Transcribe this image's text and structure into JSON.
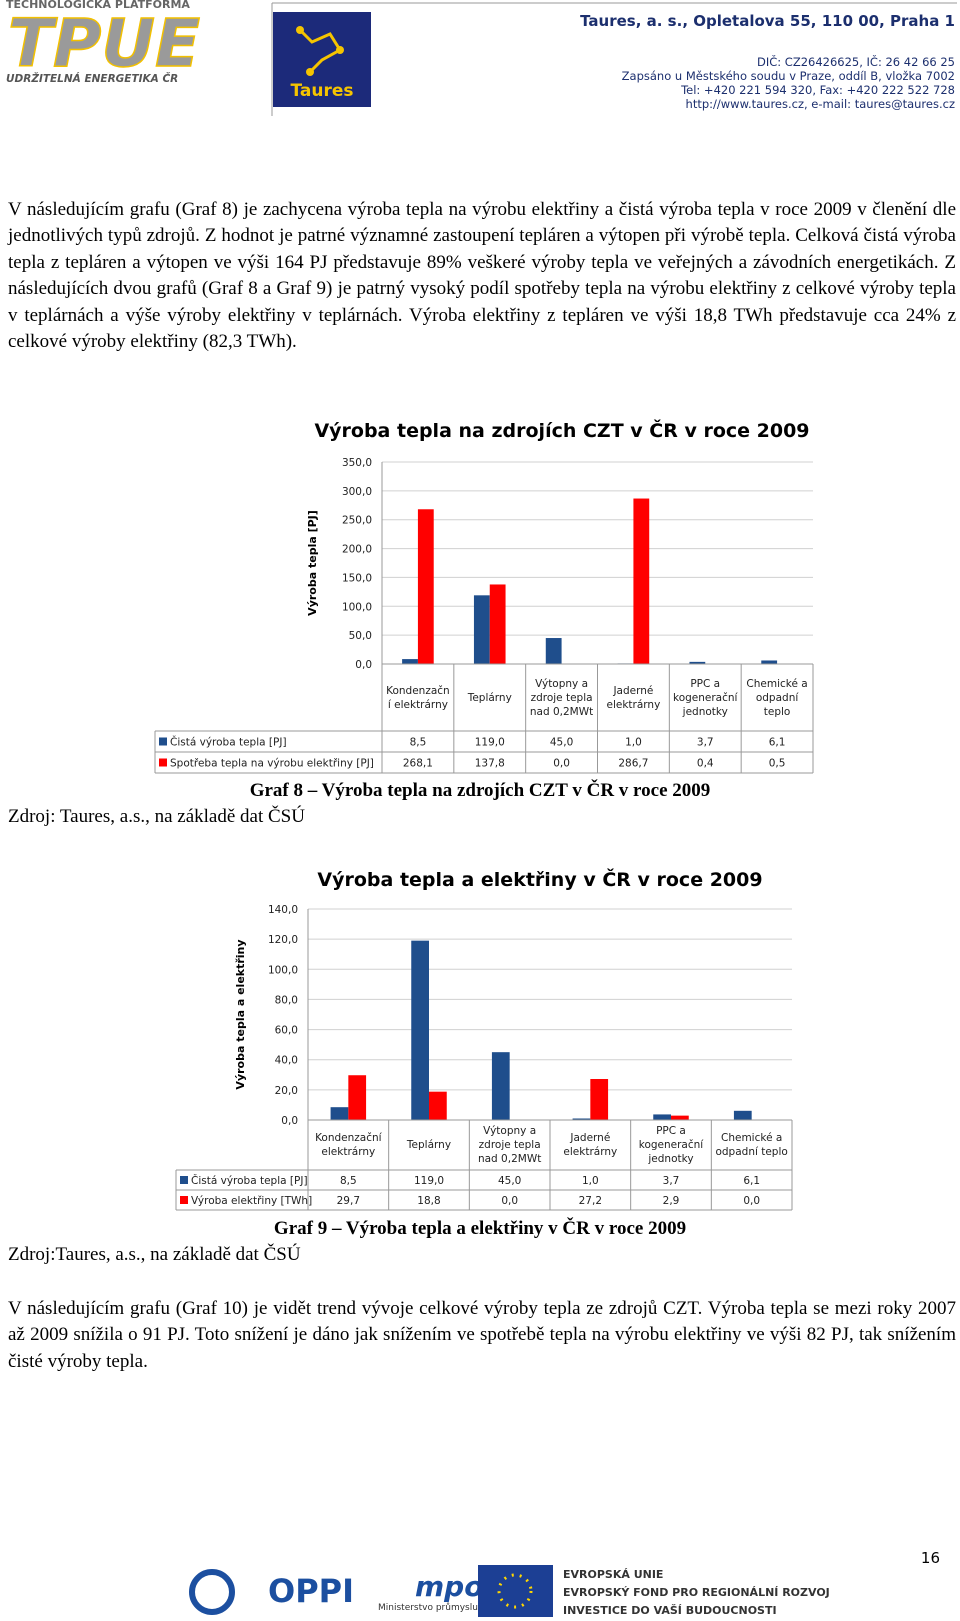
{
  "header": {
    "tpue_top": "TECHNOLOGICKÁ PLATFORMA",
    "tpue_logo": "TPUE",
    "tpue_bottom": "UDRŽITELNÁ ENERGETIKA ČR",
    "taures_logo": "Taures",
    "address": [
      "Taures, a. s., Opletalova 55, 110 00, Praha 1",
      "DIČ: CZ26426625, IČ: 26 42 66 25",
      "Zapsáno u Městského soudu v Praze, oddíl B, vložka 7002",
      "Tel: +420 221 594 320, Fax: +420 222 522 728",
      "http://www.taures.cz, e-mail: taures@taures.cz"
    ]
  },
  "paragraphs": [
    "V následujícím grafu (Graf 8) je zachycena výroba tepla na výrobu elektřiny a čistá výroba tepla v roce 2009 v členění dle jednotlivých typů zdrojů. Z hodnot je patrné významné zastoupení tepláren a výtopen při výrobě tepla. Celková čistá výroba tepla z tepláren a výtopen ve výši 164 PJ představuje 89% veškeré výroby tepla ve veřejných a závodních energetikách. Z následujících dvou grafů (Graf 8 a Graf 9) je patrný vysoký podíl spotřeby tepla na výrobu elektřiny z celkové výroby tepla v teplárnách a výše výroby elektřiny v teplárnách. Výroba elektřiny z tepláren ve výši 18,8 TWh představuje cca 24% z celkové výroby elektřiny (82,3 TWh).",
    "V následujícím grafu (Graf 10) je vidět trend vývoje celkové výroby tepla ze zdrojů CZT. Výroba tepla se mezi roky 2007 až 2009 snížila o 91 PJ. Toto snížení je dáno jak snížením ve spotřebě tepla na výrobu elektřiny ve výši 82 PJ, tak snížením čisté výroby tepla."
  ],
  "chart_data": [
    {
      "type": "bar",
      "title": "Výroba tepla na zdrojích CZT v ČR v roce 2009",
      "y_label": "Výroba tepla [PJ]",
      "caption": "Graf 8 – Výroba tepla na zdrojích CZT v ČR v roce 2009",
      "source": "Zdroj: Taures, a.s., na základě dat ČSÚ",
      "categories": [
        "Kondenzační elektrárny",
        "Teplárny",
        "Výtopny a zdroje tepla nad 0,2MWt",
        "Jaderné elektrárny",
        "PPC a kogenerační jednotky",
        "Chemické a odpadní teplo"
      ],
      "series": [
        {
          "name": "Čistá výroba tepla [PJ]",
          "color": "#1f4e8c",
          "values": [
            8.5,
            119,
            45,
            1,
            3.7,
            6.1
          ],
          "value_labels": [
            "8,5",
            "119,0",
            "45,0",
            "1,0",
            "3,7",
            "6,1"
          ]
        },
        {
          "name": "Spotřeba tepla na výrobu elektřiny [PJ]",
          "color": "#ff0000",
          "values": [
            268.1,
            137.8,
            0,
            286.7,
            0.4,
            0.5
          ],
          "value_labels": [
            "268,1",
            "137,8",
            "0,0",
            "286,7",
            "0,4",
            "0,5"
          ]
        }
      ],
      "ylim": [
        0,
        350
      ],
      "yticks": [
        {
          "value": 0,
          "label": "0,0"
        },
        {
          "value": 50,
          "label": "50,0"
        },
        {
          "value": 100,
          "label": "100,0"
        },
        {
          "value": 150,
          "label": "150,0"
        },
        {
          "value": 200,
          "label": "200,0"
        },
        {
          "value": 250,
          "label": "250,0"
        },
        {
          "value": 300,
          "label": "300,0"
        },
        {
          "value": 350,
          "label": "350,0"
        }
      ],
      "grid": true
    },
    {
      "type": "bar",
      "title": "Výroba tepla a elektřiny v ČR v roce 2009",
      "y_label": "Výroba tepla a elektřiny",
      "caption": "Graf 9 – Výroba tepla a elektřiny v ČR v roce 2009",
      "source": "Zdroj:Taures, a.s., na základě dat ČSÚ",
      "categories": [
        "Kondenzační elektrárny",
        "Teplárny",
        "Výtopny a zdroje tepla nad 0,2MWt",
        "Jaderné elektrárny",
        "PPC a kogenerační jednotky",
        "Chemické a odpadní teplo"
      ],
      "series": [
        {
          "name": "Čistá výroba tepla [PJ]",
          "color": "#1f4e8c",
          "values": [
            8.5,
            119,
            45,
            1,
            3.7,
            6.1
          ],
          "value_labels": [
            "8,5",
            "119,0",
            "45,0",
            "1,0",
            "3,7",
            "6,1"
          ]
        },
        {
          "name": "Výroba elektřiny [TWh]",
          "color": "#ff0000",
          "values": [
            29.7,
            18.8,
            0,
            27.2,
            2.9,
            0
          ],
          "value_labels": [
            "29,7",
            "18,8",
            "0,0",
            "27,2",
            "2,9",
            "0,0"
          ]
        }
      ],
      "ylim": [
        0,
        140
      ],
      "yticks": [
        {
          "value": 0,
          "label": "0,0"
        },
        {
          "value": 20,
          "label": "20,0"
        },
        {
          "value": 40,
          "label": "40,0"
        },
        {
          "value": 60,
          "label": "60,0"
        },
        {
          "value": 80,
          "label": "80,0"
        },
        {
          "value": 100,
          "label": "100,0"
        },
        {
          "value": 120,
          "label": "120,0"
        },
        {
          "value": 140,
          "label": "140,0"
        }
      ],
      "grid": true
    }
  ],
  "page_number": "16",
  "footer": {
    "oppi": "OPPI",
    "mpo": "mpo",
    "mpo_text": "Ministerstvo průmyslu a obchodu",
    "eu": [
      "EVROPSKÁ UNIE",
      "EVROPSKÝ FOND PRO REGIONÁLNÍ ROZVOJ",
      "INVESTICE DO VAŠÍ BUDOUCNOSTI"
    ]
  }
}
